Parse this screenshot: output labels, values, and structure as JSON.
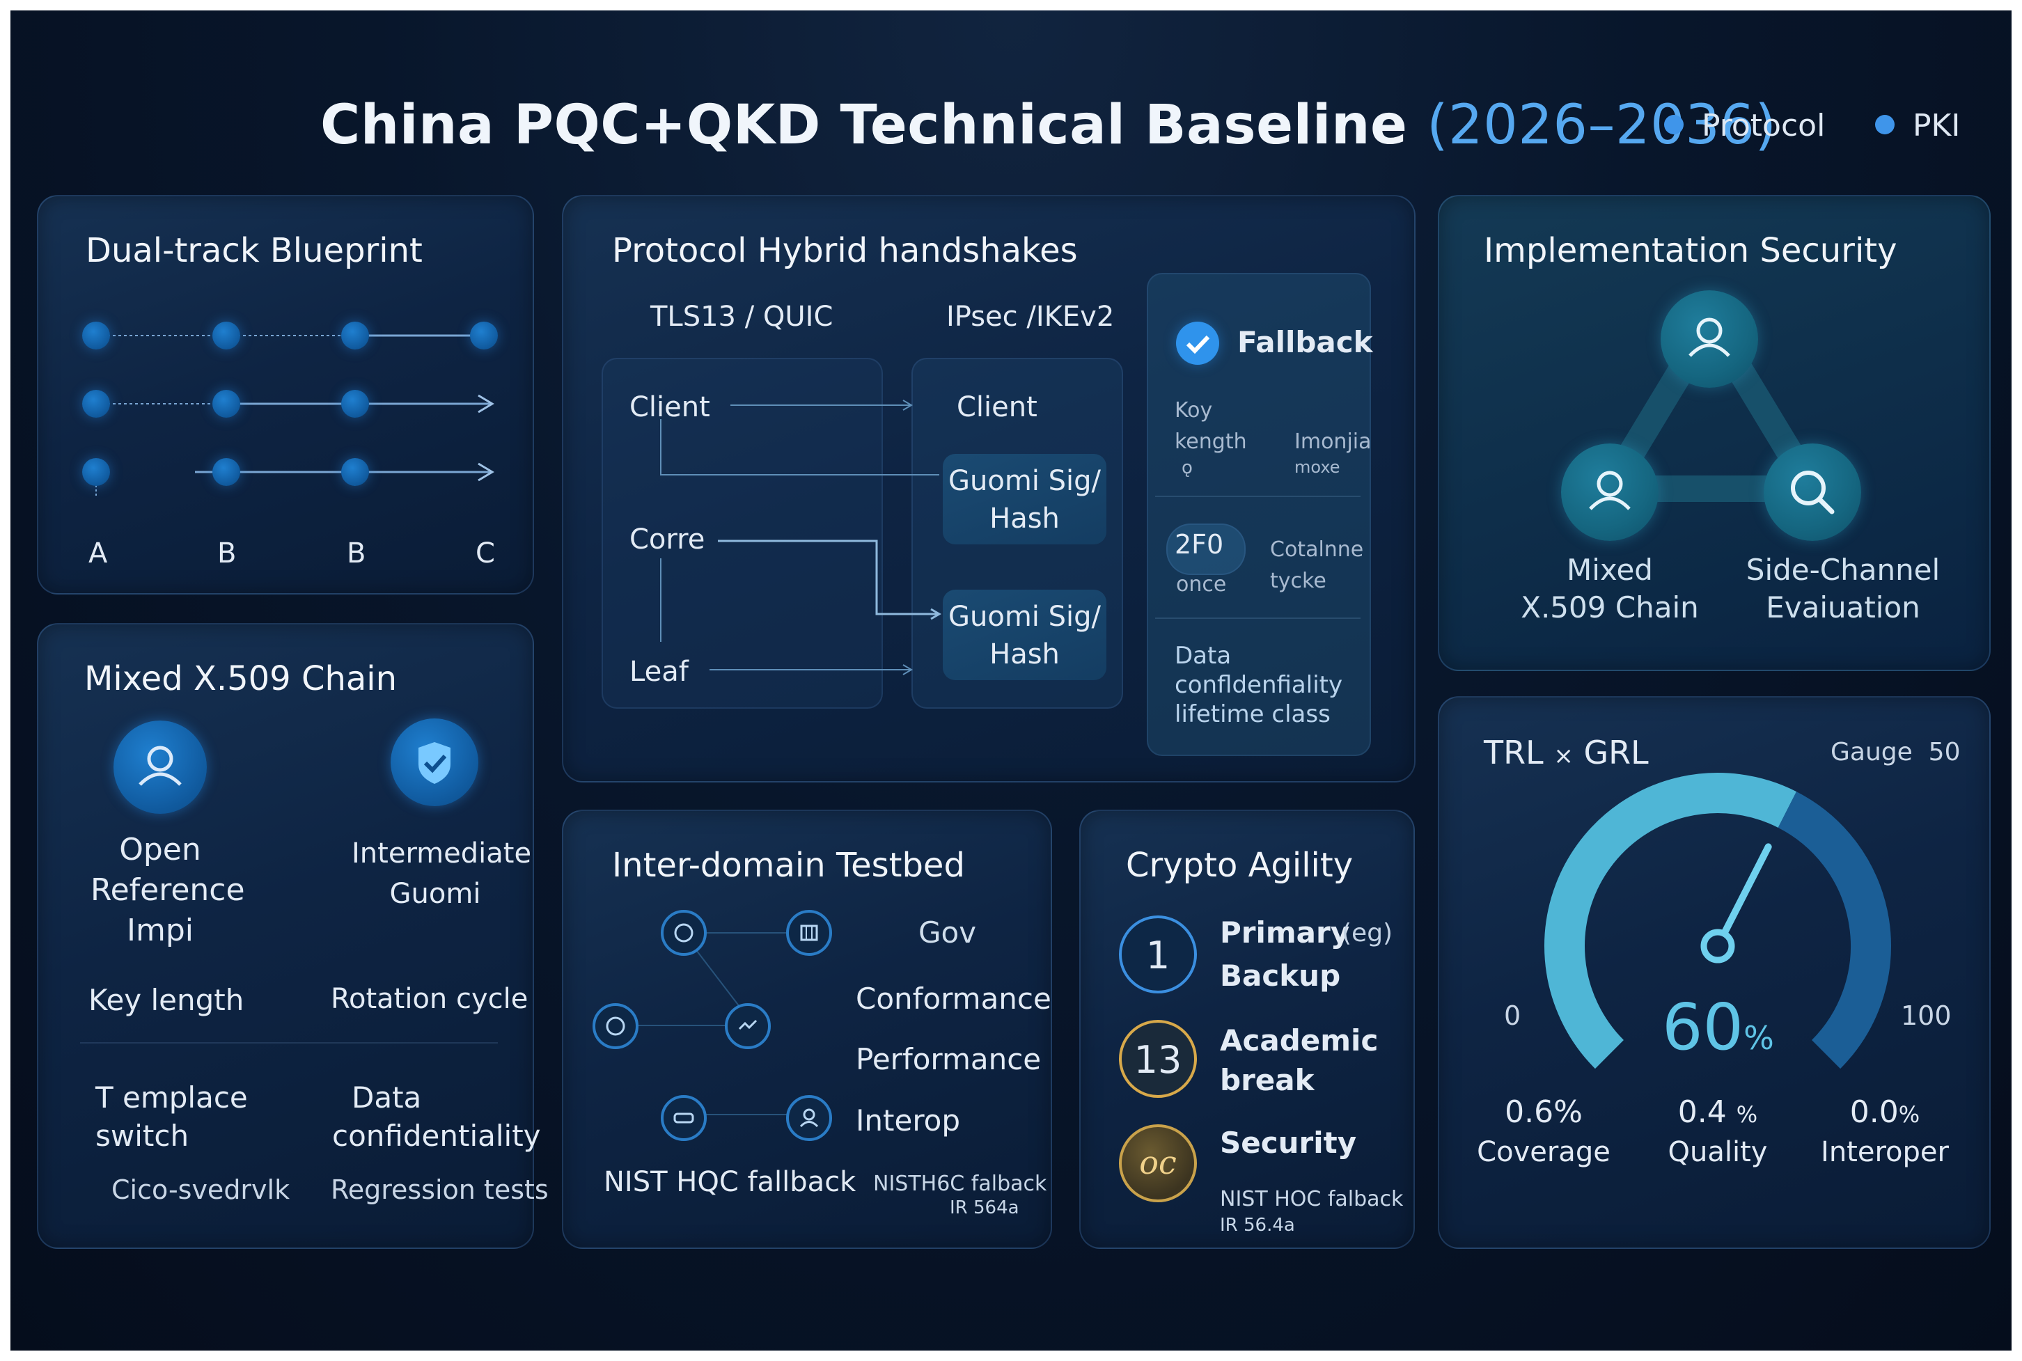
{
  "header": {
    "title": "China PQC+QKD Technical Baseline",
    "title_years": "(2026–2036)",
    "legend": [
      "Protocol",
      "PKI"
    ]
  },
  "colors": {
    "accent": "#3f95ea",
    "teal": "#2f9fc0",
    "gauge": "#4fb6d6"
  },
  "blueprint": {
    "title": "Dual-track Blueprint",
    "axis_labels": [
      "A",
      "B",
      "B",
      "C"
    ]
  },
  "x509": {
    "title": "Mixed X.509 Chain",
    "node1": [
      "Open",
      "Reference",
      "Impi"
    ],
    "node2": [
      "Intermediate",
      "Guomi"
    ],
    "fields": [
      "Key length",
      "Rotation cycle",
      "T emplace",
      "switch",
      "Data",
      "confidentiality",
      "Cico-svedrvlk",
      "Regression tests"
    ]
  },
  "protocol": {
    "title": "Protocol Hybrid handshakes",
    "col1": "TLS13 / QUIC",
    "col2": "IPsec /IKEv2",
    "left_nodes": [
      "Client",
      "Corre",
      "Leaf"
    ],
    "right_client": "Client",
    "guomi1": [
      "Guomi Sig/",
      "Hash"
    ],
    "guomi2": [
      "Guomi Sig/",
      "Hash"
    ],
    "fallback": {
      "title": "Fallback",
      "r1": [
        "Koy",
        "kength",
        "ǫ",
        "Imonjia",
        "moxe"
      ],
      "r2": [
        "2F0",
        "once",
        "Cotalnne",
        "tycke"
      ],
      "r3": [
        "Data",
        "confldenfiality",
        "lifetime class"
      ]
    }
  },
  "implsec": {
    "title": "Implementation Security",
    "left_label": [
      "Mixed",
      "X.509 Chain"
    ],
    "right_label": [
      "Side-Channel",
      "Evaiuation"
    ]
  },
  "testbed": {
    "title": "Inter-domain Testbed",
    "labels": [
      "Gov",
      "Conformance",
      "Performance",
      "Interop"
    ],
    "bottom_left": "NIST HQC fallback",
    "bottom_right": [
      "NISTH6C falback",
      "IR 564a"
    ]
  },
  "agility": {
    "title": "Crypto Agility",
    "items": [
      {
        "badge": "1",
        "line1": "Primary",
        "tag": "(eg)",
        "line2": "Backup"
      },
      {
        "badge": "13",
        "line1": "Academic",
        "line2": "break"
      },
      {
        "badge": "oc",
        "line1": "Security"
      }
    ],
    "note": [
      "NIST HOC falback",
      "IR 56.4a"
    ]
  },
  "gauge": {
    "title_a": "TRL",
    "times": "×",
    "title_b": "GRL",
    "gauge_label": "Gauge",
    "gauge_num": "50",
    "min": "0",
    "max": "100",
    "value": "60",
    "unit": "%",
    "value_fraction": 0.6,
    "stats": [
      {
        "value": "0.6%",
        "label": "Coverage"
      },
      {
        "value": "0.4",
        "unit": "%",
        "label": "Quality"
      },
      {
        "value": "0.0",
        "unit": "%",
        "label": "Interoper"
      }
    ]
  }
}
